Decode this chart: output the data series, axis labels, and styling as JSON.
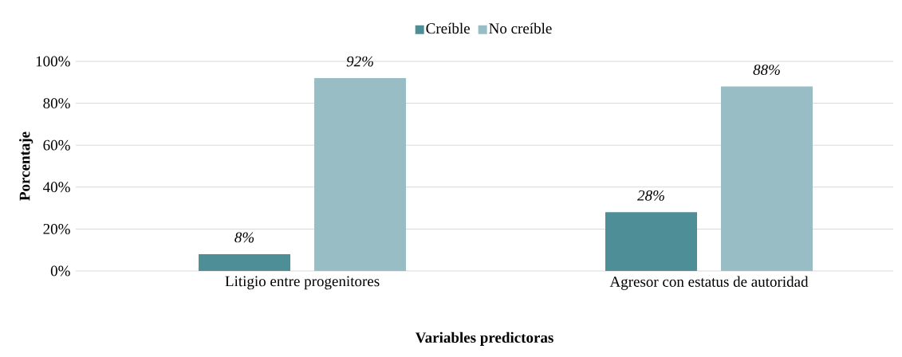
{
  "chart_data": {
    "type": "bar",
    "xlabel": "Variables predictoras",
    "ylabel": "Porcentaje",
    "categories": [
      "Litigio entre progenitores",
      "Agresor con estatus de autoridad"
    ],
    "series": [
      {
        "name": "Creíble",
        "color": "#4e8e97",
        "values": [
          8,
          28
        ],
        "value_labels": [
          "8%",
          "28%"
        ]
      },
      {
        "name": "No creíble",
        "color": "#98bdc4",
        "values": [
          92,
          88
        ],
        "value_labels": [
          "92%",
          "88%"
        ]
      }
    ],
    "ylim": [
      0,
      100
    ],
    "yticks": [
      {
        "value": 0,
        "label": "0%"
      },
      {
        "value": 20,
        "label": "20%"
      },
      {
        "value": 40,
        "label": "40%"
      },
      {
        "value": 60,
        "label": "60%"
      },
      {
        "value": 80,
        "label": "80%"
      },
      {
        "value": 100,
        "label": "100%"
      }
    ],
    "grid": "y",
    "legend": "top"
  }
}
